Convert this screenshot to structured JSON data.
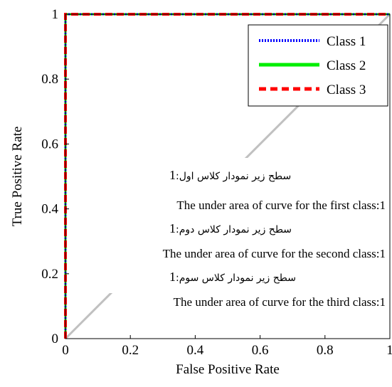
{
  "chart_data": {
    "type": "line",
    "xlabel": "False Positive Rate",
    "ylabel": "True Positive Rate",
    "xlim": [
      0,
      1
    ],
    "ylim": [
      0,
      1
    ],
    "x_ticks": [
      "0",
      "0.2",
      "0.4",
      "0.6",
      "0.8",
      "1"
    ],
    "y_ticks": [
      "0",
      "0.2",
      "0.4",
      "0.6",
      "0.8",
      "1"
    ],
    "grid": false,
    "legend_position": "top-right",
    "reference_line": {
      "x": [
        0,
        1
      ],
      "y": [
        0,
        1
      ],
      "color": "#c0c0c0"
    },
    "series": [
      {
        "name": "Class 1",
        "color": "#0000ff",
        "style": "dotted",
        "x": [
          0,
          0,
          1
        ],
        "y": [
          0,
          1,
          1
        ]
      },
      {
        "name": "Class 2",
        "color": "#00ee00",
        "style": "solid",
        "x": [
          0,
          0,
          1
        ],
        "y": [
          0,
          1,
          1
        ]
      },
      {
        "name": "Class 3",
        "color": "#ff0000",
        "style": "dashed",
        "x": [
          0,
          0,
          1
        ],
        "y": [
          0,
          1,
          1
        ]
      }
    ],
    "annotations": [
      {
        "fa_text": "سطح زیر نمودار کلاس اول",
        "fa_value": ":1",
        "en_text": "The under area of curve for the first class:1"
      },
      {
        "fa_text": "سطح زیر نمودار کلاس دوم",
        "fa_value": ":1",
        "en_text": "The under area of curve for the second class:1"
      },
      {
        "fa_text": "سطح زیر نمودار کلاس سوم",
        "fa_value": ":1",
        "en_text": "The under area of curve for the third class:1"
      }
    ]
  }
}
